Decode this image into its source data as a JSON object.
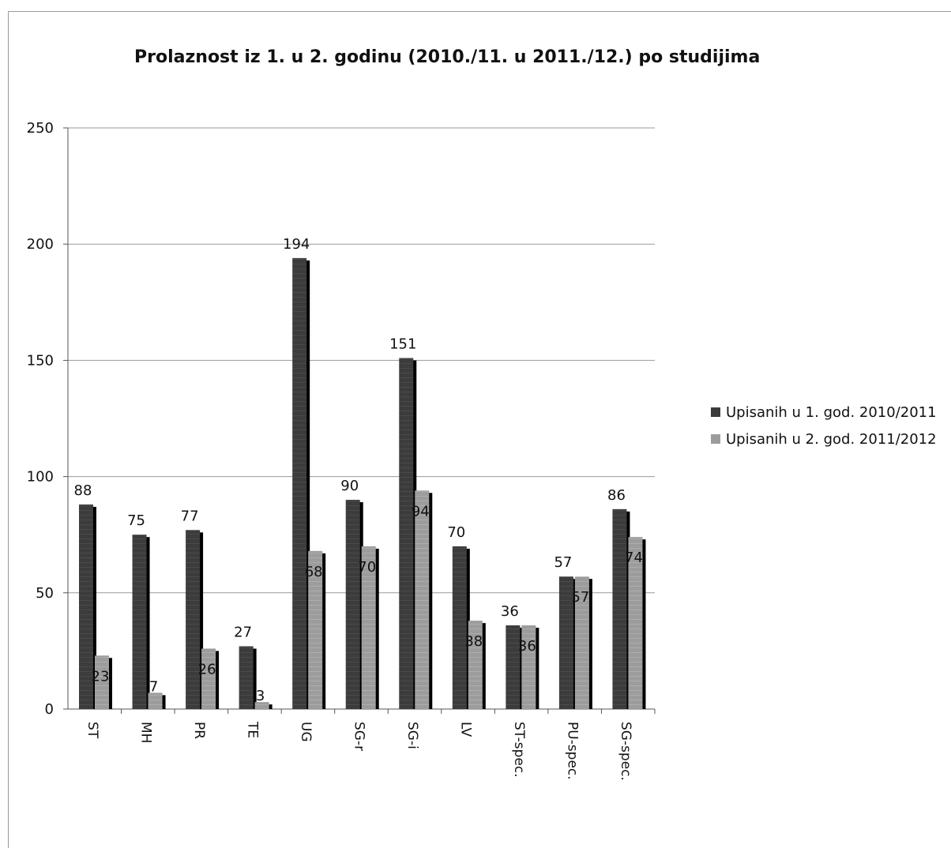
{
  "chart_data": {
    "type": "bar",
    "title": "Prolaznost iz 1. u 2. godinu  (2010./11. u 2011./12.) po studijima",
    "categories": [
      "ST",
      "MH",
      "PR",
      "TE",
      "UG",
      "SG-r",
      "SG-i",
      "LV",
      "ST-spec.",
      "PU-spec.",
      "SG-spec."
    ],
    "series": [
      {
        "name": "Upisanih u 1. god. 2010/2011",
        "values": [
          88,
          75,
          77,
          27,
          194,
          90,
          151,
          70,
          36,
          57,
          86
        ],
        "color": "#3c3c3c"
      },
      {
        "name": "Upisanih u 2. god. 2011/2012",
        "values": [
          23,
          7,
          26,
          3,
          68,
          70,
          94,
          38,
          36,
          57,
          74
        ],
        "color": "#9c9c9c"
      }
    ],
    "yticks": [
      "0",
      "50",
      "100",
      "150",
      "200",
      "250"
    ],
    "ylim": [
      0,
      250
    ],
    "grid": true,
    "legend_position": "right",
    "xlabel": "",
    "ylabel": ""
  }
}
